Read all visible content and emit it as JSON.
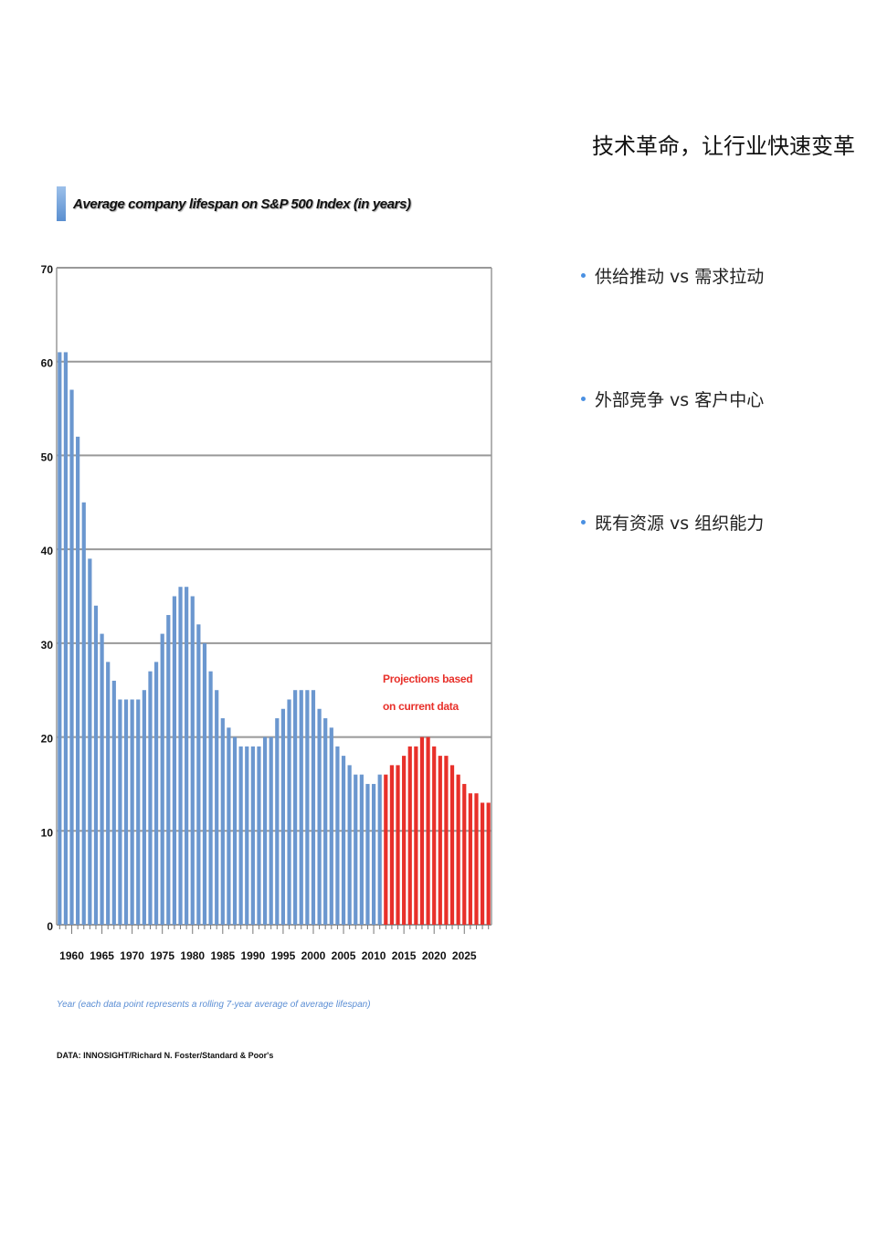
{
  "slide": {
    "title": "技术革命，让行业快速变革",
    "bullets": [
      "供给推动 vs 需求拉动",
      "外部竞争 vs 客户中心",
      "既有资源 vs 组织能力"
    ],
    "bullet_color": "#4a90e2"
  },
  "chart_data": {
    "type": "bar",
    "title": "Average company lifespan on S&P 500 Index (in years)",
    "xlabel": "Year (each data point represents a rolling 7-year average of average lifespan)",
    "source": "DATA: INNOSIGHT/Richard N. Foster/Standard & Poor's",
    "annotation": "Projections based on current data",
    "annotation_lines": [
      "Projections based",
      "on current data"
    ],
    "ylim": [
      0,
      70
    ],
    "yticks": [
      0,
      10,
      20,
      30,
      40,
      50,
      60,
      70
    ],
    "xticks": [
      1960,
      1965,
      1970,
      1975,
      1980,
      1985,
      1990,
      1995,
      2000,
      2005,
      2010,
      2015,
      2020,
      2025
    ],
    "grid": true,
    "x_start": 1958,
    "projection_start": 2012,
    "colors": {
      "actual": "#6b97cf",
      "projection": "#e8302a"
    },
    "years": [
      1958,
      1959,
      1960,
      1961,
      1962,
      1963,
      1964,
      1965,
      1966,
      1967,
      1968,
      1969,
      1970,
      1971,
      1972,
      1973,
      1974,
      1975,
      1976,
      1977,
      1978,
      1979,
      1980,
      1981,
      1982,
      1983,
      1984,
      1985,
      1986,
      1987,
      1988,
      1989,
      1990,
      1991,
      1992,
      1993,
      1994,
      1995,
      1996,
      1997,
      1998,
      1999,
      2000,
      2001,
      2002,
      2003,
      2004,
      2005,
      2006,
      2007,
      2008,
      2009,
      2010,
      2011,
      2012,
      2013,
      2014,
      2015,
      2016,
      2017,
      2018,
      2019,
      2020,
      2021,
      2022,
      2023,
      2024,
      2025,
      2026,
      2027,
      2028,
      2029
    ],
    "values": [
      61,
      61,
      57,
      52,
      45,
      39,
      34,
      31,
      28,
      26,
      24,
      24,
      24,
      24,
      25,
      27,
      28,
      31,
      33,
      35,
      36,
      36,
      35,
      32,
      30,
      27,
      25,
      22,
      21,
      20,
      19,
      19,
      19,
      19,
      20,
      20,
      22,
      23,
      24,
      25,
      25,
      25,
      25,
      23,
      22,
      21,
      19,
      18,
      17,
      16,
      16,
      15,
      15,
      16,
      16,
      17,
      17,
      18,
      19,
      19,
      20,
      20,
      19,
      18,
      18,
      17,
      16,
      15,
      14,
      14,
      13,
      13
    ]
  }
}
